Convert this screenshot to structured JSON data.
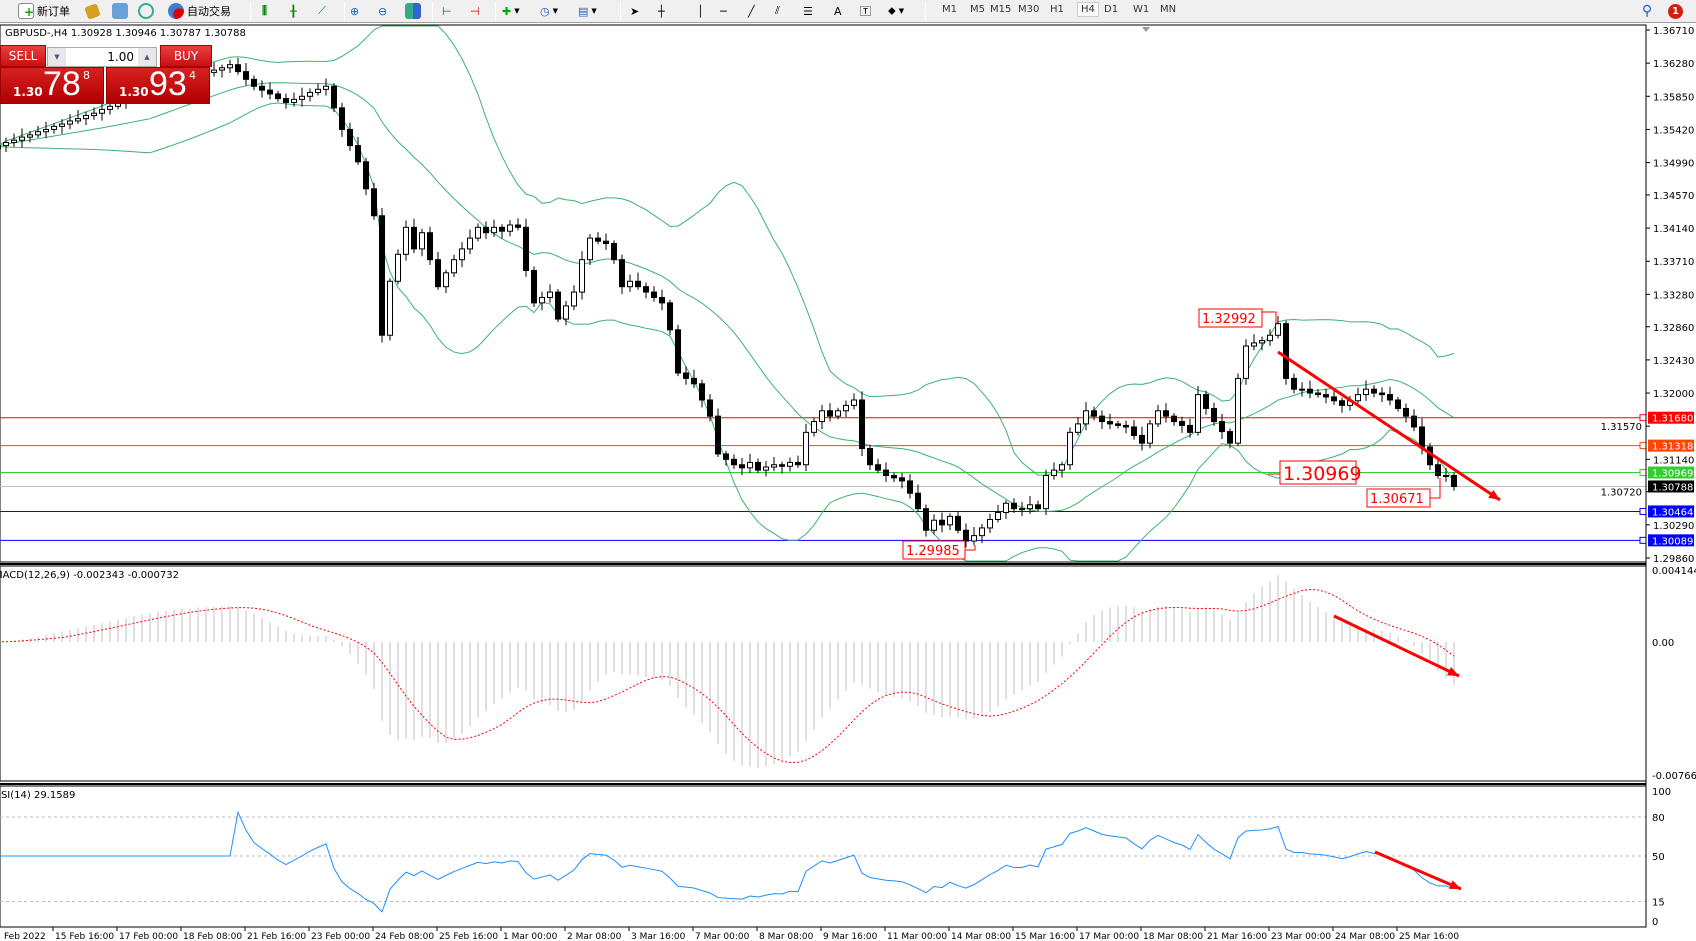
{
  "toolbar": {
    "new_order": "新订单",
    "auto_trading": "自动交易",
    "timeframes": [
      "M1",
      "M5",
      "M15",
      "M30",
      "H1",
      "H4",
      "D1",
      "W1",
      "MN"
    ],
    "active_timeframe": "H4",
    "notification_count": "1"
  },
  "chart_header": "GBPUSD-,H4  1.30928 1.30946 1.30787 1.30788",
  "trade_panel": {
    "sell_label": "SELL",
    "buy_label": "BUY",
    "lots": "1.00",
    "sell_prefix": "1.30",
    "sell_big": "78",
    "sell_sup": "8",
    "buy_prefix": "1.30",
    "buy_big": "93",
    "buy_sup": "4"
  },
  "chart_data": {
    "type": "candlestick",
    "symbol": "GBPUSD-",
    "timeframe": "H4",
    "ylim": [
      1.2986,
      1.3671
    ],
    "closes": [
      1.3521,
      1.3525,
      1.3528,
      1.3532,
      1.3535,
      1.3539,
      1.3542,
      1.3546,
      1.3549,
      1.3553,
      1.3556,
      1.356,
      1.3563,
      1.3568,
      1.3572,
      1.3577,
      1.3582,
      1.3586,
      1.3591,
      1.3594,
      1.3597,
      1.36,
      1.3604,
      1.3607,
      1.361,
      1.3613,
      1.3616,
      1.3619,
      1.3622,
      1.3626,
      1.3617,
      1.3607,
      1.3598,
      1.3593,
      1.3588,
      1.3582,
      1.3577,
      1.3581,
      1.3585,
      1.359,
      1.3594,
      1.3598,
      1.357,
      1.3542,
      1.3521,
      1.35,
      1.3465,
      1.343,
      1.3275,
      1.3345,
      1.338,
      1.3415,
      1.3387,
      1.3408,
      1.3373,
      1.3338,
      1.3356,
      1.3373,
      1.3387,
      1.3401,
      1.3415,
      1.3408,
      1.3415,
      1.341,
      1.3418,
      1.3415,
      1.3359,
      1.3317,
      1.3324,
      1.3331,
      1.3296,
      1.3313,
      1.3331,
      1.3373,
      1.3401,
      1.3397,
      1.3394,
      1.3373,
      1.3338,
      1.3345,
      1.3338,
      1.3331,
      1.3324,
      1.3317,
      1.3282,
      1.3226,
      1.3219,
      1.3212,
      1.3191,
      1.317,
      1.3121,
      1.3114,
      1.3107,
      1.3103,
      1.311,
      1.31,
      1.3104,
      1.3107,
      1.3105,
      1.311,
      1.3107,
      1.3149,
      1.3163,
      1.3177,
      1.317,
      1.3177,
      1.3184,
      1.3191,
      1.3128,
      1.3107,
      1.31,
      1.3093,
      1.309,
      1.3086,
      1.307,
      1.305,
      1.3022,
      1.3035,
      1.3029,
      1.304,
      1.3022,
      1.3008,
      1.3015,
      1.3025,
      1.3036,
      1.3045,
      1.3057,
      1.305,
      1.305,
      1.3055,
      1.305,
      1.3093,
      1.31,
      1.3107,
      1.3149,
      1.316,
      1.3177,
      1.317,
      1.3163,
      1.316,
      1.3158,
      1.3156,
      1.3145,
      1.3135,
      1.316,
      1.3177,
      1.317,
      1.3163,
      1.3158,
      1.3149,
      1.3198,
      1.318,
      1.3163,
      1.315,
      1.3135,
      1.3219,
      1.3261,
      1.3265,
      1.3268,
      1.3275,
      1.329,
      1.3219,
      1.3205,
      1.3205,
      1.32,
      1.3198,
      1.3195,
      1.319,
      1.3184,
      1.319,
      1.3198,
      1.3205,
      1.32,
      1.3198,
      1.3191,
      1.318,
      1.317,
      1.3156,
      1.313,
      1.3107,
      1.3093,
      1.3093,
      1.30788
    ],
    "price_axis": [
      "1.36710",
      "1.36280",
      "1.35850",
      "1.35420",
      "1.34990",
      "1.34570",
      "1.34140",
      "1.33710",
      "1.33280",
      "1.32860",
      "1.32430",
      "1.32000",
      "1.31570",
      "1.31140",
      "1.30720",
      "1.30290",
      "1.29860"
    ],
    "levels": [
      {
        "price": "1.31680",
        "color": "#ff0000"
      },
      {
        "price": "1.31318",
        "color": "#ff4500"
      },
      {
        "price": "1.30969",
        "color": "#32cd32"
      },
      {
        "price": "1.30788",
        "color": "#000000",
        "current": true
      },
      {
        "price": "1.30464",
        "color": "#0000ff"
      },
      {
        "price": "1.30089",
        "color": "#0000ff"
      }
    ],
    "price_labels": [
      "1.32992",
      "1.30969",
      "1.30671",
      "1.29985"
    ],
    "time_axis": [
      "Feb 2022",
      "15 Feb 16:00",
      "17 Feb 00:00",
      "18 Feb 08:00",
      "21 Feb 16:00",
      "23 Feb 00:00",
      "24 Feb 08:00",
      "25 Feb 16:00",
      "1 Mar 00:00",
      "2 Mar 08:00",
      "3 Mar 16:00",
      "7 Mar 00:00",
      "8 Mar 08:00",
      "9 Mar 16:00",
      "11 Mar 00:00",
      "14 Mar 08:00",
      "15 Mar 16:00",
      "17 Mar 00:00",
      "18 Mar 08:00",
      "21 Mar 16:00",
      "23 Mar 00:00",
      "24 Mar 08:00",
      "25 Mar 16:00"
    ],
    "bollinger_color": "#3cb371",
    "macd": {
      "title": "MACD(12,26,9) -0.002343 -0.000732",
      "axis": [
        "0.004144",
        "0.00",
        "-0.007664"
      ],
      "ylim": [
        -0.007664,
        0.004144
      ],
      "hist_color": "#c0c0c0",
      "signal_color": "#ff0000"
    },
    "rsi": {
      "title": "RSI(14) 29.1589",
      "axis": [
        "100",
        "80",
        "50",
        "15",
        "0"
      ],
      "levels": [
        80,
        50,
        15
      ],
      "color": "#1e90ff"
    }
  }
}
